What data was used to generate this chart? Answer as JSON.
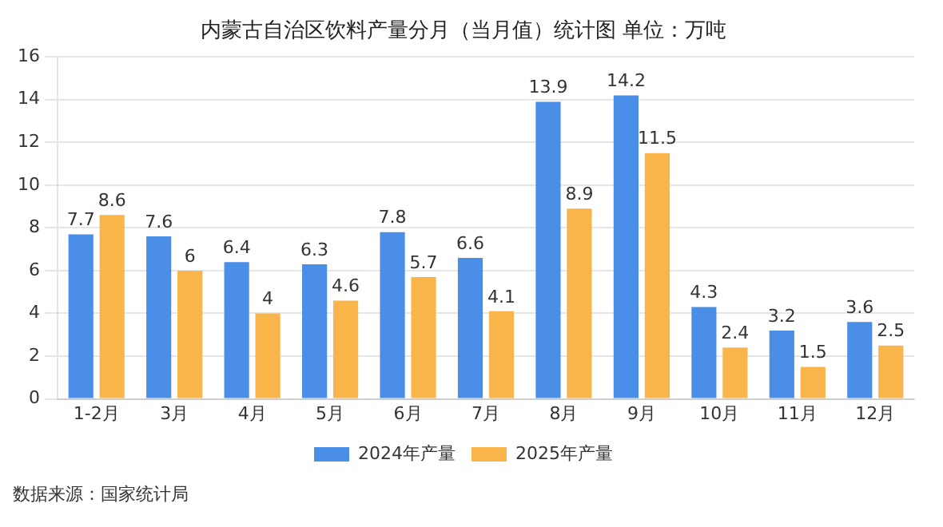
{
  "chart_data": {
    "type": "bar",
    "title": "内蒙古自治区饮料产量分月（当月值）统计图 单位：万吨",
    "categories": [
      "1-2月",
      "3月",
      "4月",
      "5月",
      "6月",
      "7月",
      "8月",
      "9月",
      "10月",
      "11月",
      "12月"
    ],
    "series": [
      {
        "name": "2024年产量",
        "color": "#4a8ee8",
        "values": [
          7.7,
          7.6,
          6.4,
          6.3,
          7.8,
          6.6,
          13.9,
          14.2,
          4.3,
          3.2,
          3.6
        ]
      },
      {
        "name": "2025年产量",
        "color": "#f9b44a",
        "values": [
          8.6,
          6,
          4,
          4.6,
          5.7,
          4.1,
          8.9,
          11.5,
          2.4,
          1.5,
          2.5
        ]
      }
    ],
    "ylim": [
      0,
      16
    ],
    "yticks": [
      0,
      2,
      4,
      6,
      8,
      10,
      12,
      14,
      16
    ],
    "grid": "y",
    "legend": "bottom",
    "data_labels": true,
    "annotations": [
      "数据来源：国家统计局"
    ]
  }
}
